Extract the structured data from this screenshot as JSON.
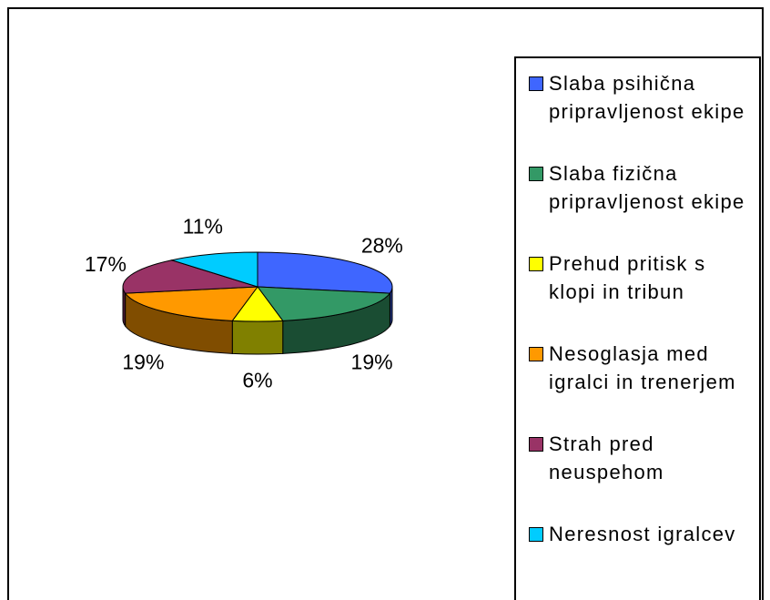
{
  "chart_data": {
    "type": "pie3d",
    "categories": [
      "Slaba psihična pripravljenost ekipe",
      "Slaba fizična pripravljenost ekipe",
      "Prehud pritisk s klopi in tribun",
      "Nesoglasja med igralci in trenerjem",
      "Strah pred neuspehom",
      "Neresnost igralcev"
    ],
    "values": [
      28,
      19,
      6,
      19,
      17,
      11
    ],
    "value_labels": [
      "28%",
      "19%",
      "6%",
      "19%",
      "17%",
      "11%"
    ],
    "colors": [
      "#3f66ff",
      "#339966",
      "#ffff00",
      "#ff9900",
      "#993366",
      "#00ccff"
    ],
    "legend": "right"
  }
}
